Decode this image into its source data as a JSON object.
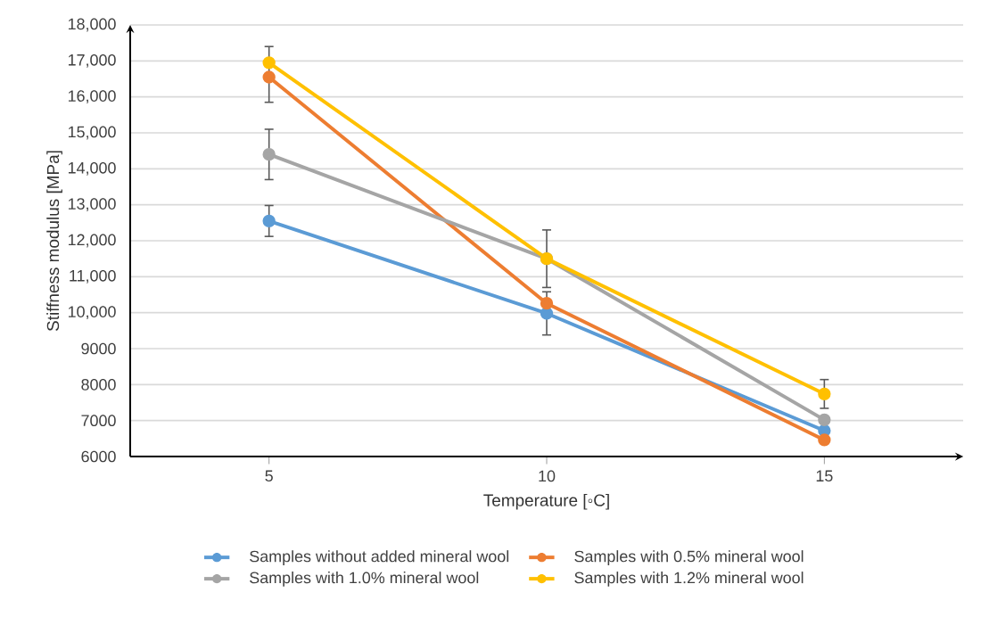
{
  "chart_data": {
    "type": "line",
    "xlabel": "Temperature [◦C]",
    "ylabel": "Stiffness modulus [MPa]",
    "categories": [
      "5",
      "10",
      "15"
    ],
    "ylim": [
      6000,
      18000
    ],
    "yticks": [
      6000,
      7000,
      8000,
      9000,
      {
        "value": 10000,
        "label": "10,000"
      },
      {
        "value": 11000,
        "label": "11,000"
      },
      {
        "value": 12000,
        "label": "12,000"
      },
      {
        "value": 13000,
        "label": "13,000"
      },
      {
        "value": 14000,
        "label": "14,000"
      },
      {
        "value": 15000,
        "label": "15,000"
      },
      {
        "value": 16000,
        "label": "16,000"
      },
      {
        "value": 17000,
        "label": "17,000"
      },
      {
        "value": 18000,
        "label": "18,000"
      }
    ],
    "grid": "y",
    "legend": "bottom",
    "marker": "circle",
    "line_style": "solid",
    "series": [
      {
        "name": "Samples without added mineral wool",
        "color": "#5b9bd5",
        "values": [
          12550,
          9980,
          6720
        ],
        "errors": [
          430,
          600,
          null
        ]
      },
      {
        "name": "Samples with 0.5% mineral wool",
        "color": "#ed7d31",
        "values": [
          16550,
          10260,
          6460
        ],
        "errors": [
          [
            15850,
            17400
          ],
          null,
          null
        ]
      },
      {
        "name": "Samples with 1.0% mineral wool",
        "color": "#a5a5a5",
        "values": [
          14400,
          11500,
          7020
        ],
        "errors": [
          700,
          null,
          null
        ]
      },
      {
        "name": "Samples with 1.2% mineral wool",
        "color": "#ffc000",
        "values": [
          16950,
          11500,
          7740
        ],
        "errors": [
          null,
          800,
          400
        ]
      }
    ]
  }
}
